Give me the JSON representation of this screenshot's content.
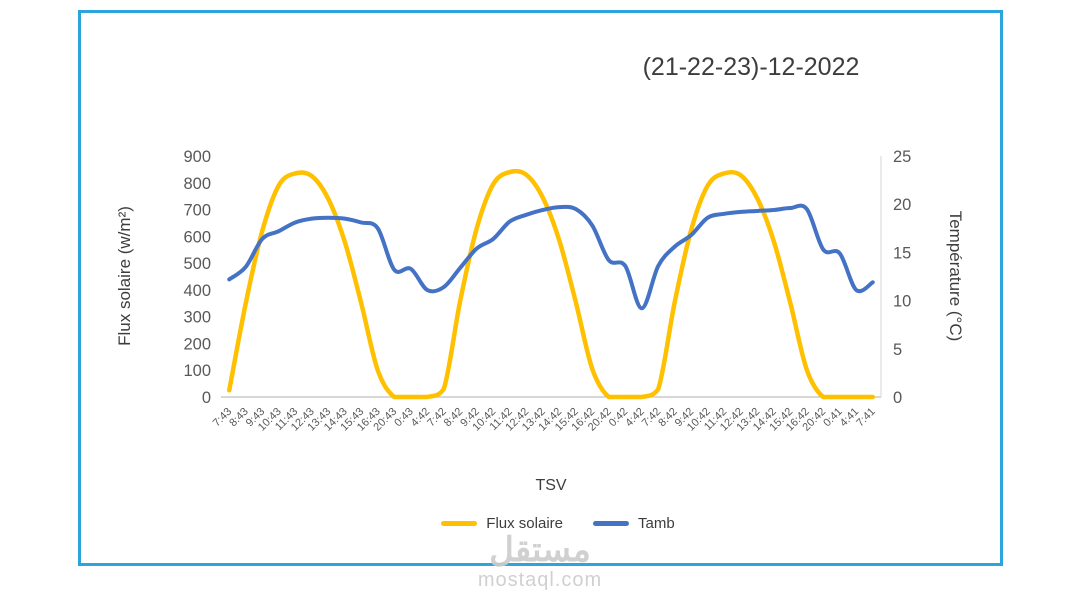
{
  "watermark": {
    "arabic": "مستقل",
    "domain": "mostaql.com"
  },
  "colors": {
    "frame_border": "#2CA5DC",
    "axis_text": "#595959",
    "title_text": "#3D3D3D",
    "axis_line": "#BFBFBF",
    "flux_color": "#FFC000",
    "tamb_color": "#4472C4",
    "watermark": "#CCCCCC"
  },
  "chart_data": {
    "type": "line",
    "title": "(21-22-23)-12-2022",
    "x_label": "TSV",
    "grid": false,
    "legend_position": "bottom",
    "y_left": {
      "label": "Flux solaire (w/m²)",
      "min": 0,
      "max": 900,
      "step": 100
    },
    "y_right": {
      "label": "Température (°C)",
      "min": 0,
      "max": 25,
      "step": 5
    },
    "categories": [
      "7:43",
      "8:43",
      "9:43",
      "10:43",
      "11:43",
      "12:43",
      "13:43",
      "14:43",
      "15:43",
      "16:43",
      "20:43",
      "0:43",
      "4:42",
      "7:42",
      "8:42",
      "9:42",
      "10:42",
      "11:42",
      "12:42",
      "13:42",
      "14:42",
      "15:42",
      "16:42",
      "20:42",
      "0:42",
      "4:42",
      "7:42",
      "8:42",
      "9:42",
      "10:42",
      "11:42",
      "12:42",
      "13:42",
      "14:42",
      "15:42",
      "16:42",
      "20:42",
      "0:41",
      "4:41",
      "7:41"
    ],
    "series": [
      {
        "name": "Flux solaire",
        "axis": "left",
        "unit": "w/m²",
        "color": "#FFC000",
        "values": [
          25,
          350,
          620,
          790,
          835,
          825,
          740,
          580,
          350,
          100,
          0,
          0,
          0,
          30,
          360,
          630,
          795,
          840,
          830,
          745,
          585,
          355,
          105,
          0,
          0,
          0,
          30,
          355,
          625,
          790,
          835,
          828,
          742,
          582,
          352,
          102,
          0,
          0,
          0,
          0
        ]
      },
      {
        "name": "Tamb",
        "axis": "right",
        "unit": "°C",
        "color": "#4472C4",
        "values": [
          12.2,
          13.5,
          16.4,
          17.2,
          18.1,
          18.5,
          18.6,
          18.5,
          18.1,
          17.5,
          13.2,
          13.3,
          11.1,
          11.4,
          13.4,
          15.4,
          16.4,
          18.2,
          18.9,
          19.4,
          19.7,
          19.5,
          17.8,
          14.2,
          13.6,
          9.2,
          13.6,
          15.6,
          16.8,
          18.6,
          19.0,
          19.2,
          19.3,
          19.4,
          19.6,
          19.5,
          15.3,
          14.9,
          11.1,
          11.9
        ]
      }
    ]
  }
}
